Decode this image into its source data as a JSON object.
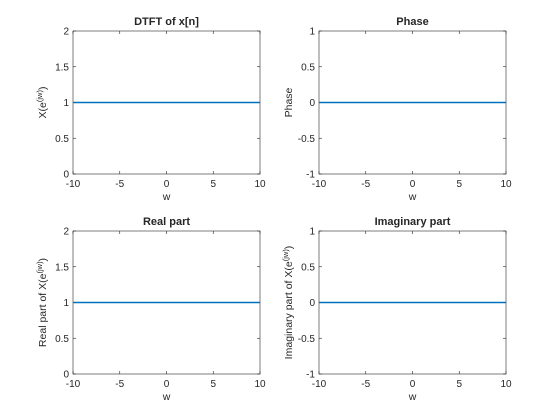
{
  "chart_data": [
    {
      "type": "line",
      "title": "DTFT of x[n]",
      "xlabel": "w",
      "ylabel": {
        "base": "X(e",
        "sup": "(jw)",
        "tail": ")"
      },
      "xlim": [
        -10,
        10
      ],
      "ylim": [
        0,
        2
      ],
      "xticks": [
        -10,
        -5,
        0,
        5,
        10
      ],
      "yticks": [
        0,
        0.5,
        1,
        1.5,
        2
      ],
      "ytick_labels": [
        "0",
        "0.5",
        "1",
        "1.5",
        "2"
      ],
      "grid": false,
      "series": [
        {
          "x": [
            -10,
            10
          ],
          "y": [
            1,
            1
          ],
          "color": "#0072BD"
        }
      ]
    },
    {
      "type": "line",
      "title": "Phase",
      "xlabel": "w",
      "ylabel": {
        "base": "Phase",
        "sup": "",
        "tail": ""
      },
      "xlim": [
        -10,
        10
      ],
      "ylim": [
        -1,
        1
      ],
      "xticks": [
        -10,
        -5,
        0,
        5,
        10
      ],
      "yticks": [
        -1,
        -0.5,
        0,
        0.5,
        1
      ],
      "ytick_labels": [
        "-1",
        "-0.5",
        "0",
        "0.5",
        "1"
      ],
      "grid": false,
      "series": [
        {
          "x": [
            -10,
            10
          ],
          "y": [
            0,
            0
          ],
          "color": "#0072BD"
        }
      ]
    },
    {
      "type": "line",
      "title": "Real part",
      "xlabel": "w",
      "ylabel": {
        "base": "Real part of X(e",
        "sup": "(jw)",
        "tail": ")"
      },
      "xlim": [
        -10,
        10
      ],
      "ylim": [
        0,
        2
      ],
      "xticks": [
        -10,
        -5,
        0,
        5,
        10
      ],
      "yticks": [
        0,
        0.5,
        1,
        1.5,
        2
      ],
      "ytick_labels": [
        "0",
        "0.5",
        "1",
        "1.5",
        "2"
      ],
      "grid": false,
      "series": [
        {
          "x": [
            -10,
            10
          ],
          "y": [
            1,
            1
          ],
          "color": "#0072BD"
        }
      ]
    },
    {
      "type": "line",
      "title": "Imaginary part",
      "xlabel": "w",
      "ylabel": {
        "base": "Imaginary part of X(e",
        "sup": "(jw)",
        "tail": ")"
      },
      "xlim": [
        -10,
        10
      ],
      "ylim": [
        -1,
        1
      ],
      "xticks": [
        -10,
        -5,
        0,
        5,
        10
      ],
      "yticks": [
        -1,
        -0.5,
        0,
        0.5,
        1
      ],
      "ytick_labels": [
        "-1",
        "-0.5",
        "0",
        "0.5",
        "1"
      ],
      "grid": false,
      "series": [
        {
          "x": [
            -10,
            10
          ],
          "y": [
            0,
            0
          ],
          "color": "#0072BD"
        }
      ]
    }
  ]
}
